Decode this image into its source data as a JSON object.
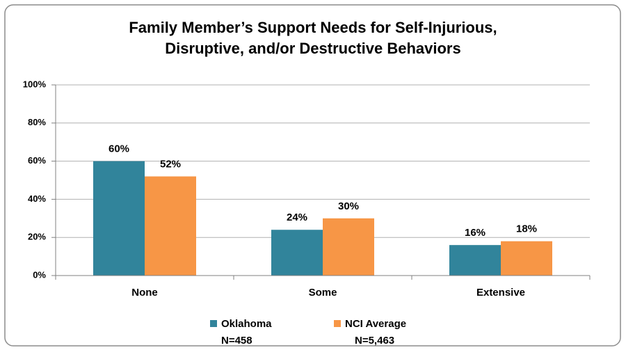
{
  "chart_data": {
    "type": "bar",
    "title": [
      "Family Member’s Support Needs for Self-Injurious,",
      "Disruptive, and/or Destructive Behaviors"
    ],
    "categories": [
      "None",
      "Some",
      "Extensive"
    ],
    "series": [
      {
        "name": "Oklahoma",
        "n_label": "N=458",
        "color": "#31849b",
        "values": [
          60,
          24,
          16
        ],
        "value_labels": [
          "60%",
          "24%",
          "16%"
        ]
      },
      {
        "name": "NCI Average",
        "n_label": "N=5,463",
        "color": "#f79646",
        "values": [
          52,
          30,
          18
        ],
        "value_labels": [
          "52%",
          "30%",
          "18%"
        ]
      }
    ],
    "ylim": [
      0,
      100
    ],
    "yticks": [
      {
        "value": 0,
        "label": "0%"
      },
      {
        "value": 20,
        "label": "20%"
      },
      {
        "value": 40,
        "label": "40%"
      },
      {
        "value": 60,
        "label": "60%"
      },
      {
        "value": 80,
        "label": "80%"
      },
      {
        "value": 100,
        "label": "100%"
      }
    ],
    "grid": true,
    "legend": "bottom"
  }
}
